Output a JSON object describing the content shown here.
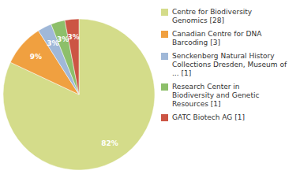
{
  "chart_data": {
    "type": "pie",
    "categories": [
      "Centre for Biodiversity\nGenomics [28]",
      "Canadian Centre for DNA\nBarcoding [3]",
      "Senckenberg Natural History\nCollections Dresden, Museum of\n... [1]",
      "Research Center in\nBiodiversity and Genetic\nResources [1]",
      "GATC Biotech AG [1]"
    ],
    "values": [
      82,
      9,
      3,
      3,
      3
    ],
    "value_labels": [
      "82%",
      "9%",
      "3%",
      "3%",
      "3%"
    ],
    "colors": [
      "#d4dc8a",
      "#f0a040",
      "#a0b8d8",
      "#8dbf6a",
      "#cc5544"
    ],
    "data_labels": true,
    "legend": "right"
  }
}
